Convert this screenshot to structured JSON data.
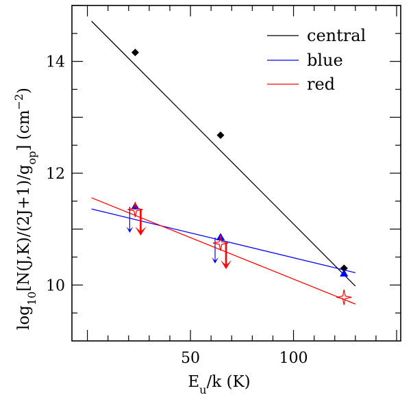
{
  "chart_data": {
    "type": "scatter",
    "title": "",
    "xlabel": "E_u/k (K)",
    "ylabel": "log10[N(J,K)/(2J+1)/g_op] (cm^-2)",
    "xlim": [
      -7.5,
      152
    ],
    "ylim": [
      9.0,
      15.0
    ],
    "xticks": [
      50,
      100
    ],
    "yticks": [
      10,
      12,
      14
    ],
    "legend": {
      "position": "top-right",
      "entries": [
        {
          "label": "central",
          "color": "#000000"
        },
        {
          "label": "blue",
          "color": "#0000ff"
        },
        {
          "label": "red",
          "color": "#ff0000"
        }
      ]
    },
    "series": [
      {
        "name": "central",
        "color": "#000000",
        "marker": "diamond",
        "points": [
          {
            "x": 23.2,
            "y": 14.16
          },
          {
            "x": 64.6,
            "y": 12.68
          },
          {
            "x": 124.5,
            "y": 10.3
          }
        ],
        "fit": {
          "x": [
            2,
            130
          ],
          "y": [
            14.72,
            9.98
          ]
        }
      },
      {
        "name": "blue",
        "color": "#0000ff",
        "marker": "triangle",
        "points": [
          {
            "x": 23.2,
            "y": 11.4,
            "upper_limit": true
          },
          {
            "x": 64.6,
            "y": 10.85,
            "upper_limit": true
          },
          {
            "x": 124.5,
            "y": 10.2
          }
        ],
        "fit": {
          "x": [
            2,
            130
          ],
          "y": [
            11.36,
            10.22
          ]
        }
      },
      {
        "name": "red",
        "color": "#ff0000",
        "marker": "open-star",
        "points": [
          {
            "x": 23.2,
            "y": 11.35,
            "upper_limit": true
          },
          {
            "x": 64.6,
            "y": 10.75,
            "upper_limit": true
          },
          {
            "x": 124.5,
            "y": 9.78
          }
        ],
        "fit": {
          "x": [
            2,
            130
          ],
          "y": [
            11.56,
            9.66
          ]
        }
      }
    ]
  }
}
